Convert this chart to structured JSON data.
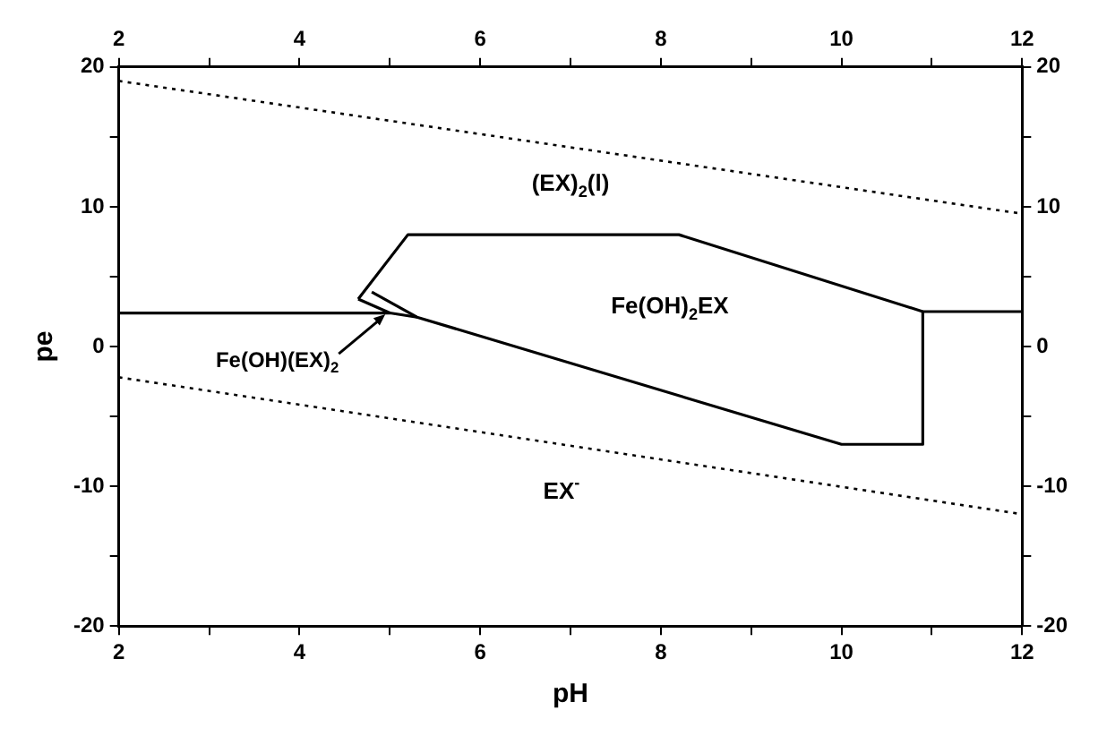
{
  "chart_data": {
    "type": "line",
    "xlabel": "pH",
    "ylabel": "pe",
    "xlim": [
      2,
      12
    ],
    "ylim": [
      -20,
      20
    ],
    "x2lim": [
      2,
      12
    ],
    "y2lim": [
      -20,
      20
    ],
    "xticks": [
      2,
      {
        "value": 3,
        "label": null
      },
      4,
      {
        "value": 5,
        "label": null
      },
      6,
      {
        "value": 7,
        "label": null
      },
      8,
      {
        "value": 9,
        "label": null
      },
      10,
      {
        "value": 11,
        "label": null
      },
      12
    ],
    "x2ticks": [
      2,
      {
        "value": 3,
        "label": null
      },
      4,
      {
        "value": 5,
        "label": null
      },
      6,
      {
        "value": 7,
        "label": null
      },
      8,
      {
        "value": 9,
        "label": null
      },
      10,
      {
        "value": 11,
        "label": null
      },
      12
    ],
    "yticks": [
      -20,
      {
        "value": -15,
        "label": null
      },
      -10,
      {
        "value": -5,
        "label": null
      },
      0,
      {
        "value": 5,
        "label": null
      },
      10,
      {
        "value": 15,
        "label": null
      },
      20
    ],
    "y2ticks": [
      -20,
      {
        "value": -15,
        "label": null
      },
      -10,
      {
        "value": -5,
        "label": null
      },
      0,
      {
        "value": 5,
        "label": null
      },
      10,
      {
        "value": 15,
        "label": null
      },
      20
    ],
    "grid": false,
    "legend": false,
    "marker": "none",
    "series": [
      {
        "color": "#000000",
        "line_style": "dotted",
        "x": [
          2,
          12
        ],
        "values": [
          19,
          9.5
        ]
      },
      {
        "color": "#000000",
        "line_style": "dotted",
        "x": [
          2,
          12
        ],
        "values": [
          -2.2,
          -12
        ]
      },
      {
        "color": "#000000",
        "line_style": "solid",
        "x": [
          2,
          5.0,
          5.3
        ],
        "values": [
          2.4,
          2.4,
          2.1
        ]
      },
      {
        "color": "#000000",
        "line_style": "solid",
        "x": [
          4.65,
          5.0
        ],
        "values": [
          3.4,
          2.4
        ]
      },
      {
        "color": "#000000",
        "line_style": "solid",
        "x": [
          4.8,
          5.3,
          10,
          10.9,
          10.9,
          12
        ],
        "values": [
          3.9,
          2.1,
          -7,
          -7,
          2.5,
          2.5
        ]
      },
      {
        "color": "#000000",
        "line_style": "solid",
        "x": [
          4.65,
          5.2,
          8.2,
          10.9
        ],
        "values": [
          3.4,
          8,
          8,
          2.5
        ]
      }
    ],
    "annotations": [
      "(EX)$_{2}$(l)",
      "Fe(OH)$_{2}$EX",
      {
        "text": "Fe(OH)(EX)$_{2}$",
        "x": 4.95,
        "y": 2.3
      },
      "EX$^{-}$"
    ]
  }
}
